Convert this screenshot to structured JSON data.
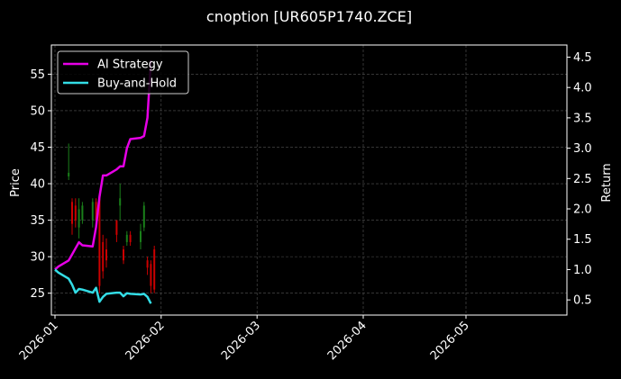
{
  "chart_data": {
    "type": "candlestick+line",
    "title": "cnoption [UR605P1740.ZCE]",
    "xlabel": "",
    "ylabel_left": "Price",
    "ylabel_right": "Return",
    "x_ticks": [
      "2026-01",
      "2026-02",
      "2026-03",
      "2026-04",
      "2026-05"
    ],
    "x_tick_dates": [
      "2026-01-01",
      "2026-02-01",
      "2026-03-01",
      "2026-04-01",
      "2026-05-01"
    ],
    "x_range": [
      "2026-01-01",
      "2026-05-30"
    ],
    "y_left_ticks": [
      25,
      30,
      35,
      40,
      45,
      50,
      55
    ],
    "y_left_range": [
      22,
      59
    ],
    "y_right_ticks": [
      0.5,
      1.0,
      1.5,
      2.0,
      2.5,
      3.0,
      3.5,
      4.0,
      4.5
    ],
    "y_right_ticks_labels": [
      "0.5",
      "1.0",
      "1.5",
      "2.0",
      "2.5",
      "3.0",
      "3.5",
      "4.0",
      "4.5"
    ],
    "y_right_range": [
      0.25,
      4.7
    ],
    "grid": true,
    "legend_placement": "top-left",
    "colors": {
      "background": "#000000",
      "up_candle": "#1a7f1a",
      "down_candle": "#cc0000",
      "ai_strategy": "#e600e6",
      "buy_and_hold": "#33dde6",
      "grid": "#555555"
    },
    "series": [
      {
        "name": "AI Strategy",
        "axis": "right",
        "x": [
          "2026-01-01",
          "2026-01-02",
          "2026-01-05",
          "2026-01-06",
          "2026-01-07",
          "2026-01-08",
          "2026-01-09",
          "2026-01-12",
          "2026-01-13",
          "2026-01-14",
          "2026-01-15",
          "2026-01-16",
          "2026-01-19",
          "2026-01-20",
          "2026-01-21",
          "2026-01-22",
          "2026-01-23",
          "2026-01-26",
          "2026-01-27",
          "2026-01-28",
          "2026-01-29"
        ],
        "values": [
          1.0,
          1.05,
          1.15,
          1.25,
          1.35,
          1.45,
          1.4,
          1.38,
          1.7,
          2.2,
          2.55,
          2.55,
          2.65,
          2.7,
          2.7,
          3.0,
          3.15,
          3.17,
          3.2,
          3.5,
          4.45
        ]
      },
      {
        "name": "Buy-and-Hold",
        "axis": "right",
        "x": [
          "2026-01-01",
          "2026-01-02",
          "2026-01-05",
          "2026-01-06",
          "2026-01-07",
          "2026-01-08",
          "2026-01-09",
          "2026-01-12",
          "2026-01-13",
          "2026-01-14",
          "2026-01-15",
          "2026-01-16",
          "2026-01-19",
          "2026-01-20",
          "2026-01-21",
          "2026-01-22",
          "2026-01-23",
          "2026-01-26",
          "2026-01-27",
          "2026-01-28",
          "2026-01-29"
        ],
        "values": [
          1.0,
          0.95,
          0.85,
          0.75,
          0.62,
          0.68,
          0.67,
          0.62,
          0.7,
          0.47,
          0.55,
          0.6,
          0.62,
          0.62,
          0.56,
          0.61,
          0.6,
          0.59,
          0.6,
          0.55,
          0.44
        ]
      }
    ],
    "candles": [
      {
        "date": "2026-01-05",
        "open": 41,
        "high": 45.5,
        "low": 40.5,
        "close": 41.5
      },
      {
        "date": "2026-01-06",
        "open": 37.5,
        "high": 38,
        "low": 33,
        "close": 34.5
      },
      {
        "date": "2026-01-07",
        "open": 37,
        "high": 38,
        "low": 34,
        "close": 35
      },
      {
        "date": "2026-01-08",
        "open": 34,
        "high": 38,
        "low": 32.5,
        "close": 36.5
      },
      {
        "date": "2026-01-09",
        "open": 35,
        "high": 37.5,
        "low": 34.5,
        "close": 37
      },
      {
        "date": "2026-01-12",
        "open": 35,
        "high": 38,
        "low": 34,
        "close": 37.5
      },
      {
        "date": "2026-01-13",
        "open": 37.5,
        "high": 38,
        "low": 34,
        "close": 35
      },
      {
        "date": "2026-01-14",
        "open": 38,
        "high": 38.5,
        "low": 25,
        "close": 26
      },
      {
        "date": "2026-01-15",
        "open": 32,
        "high": 33,
        "low": 27,
        "close": 28
      },
      {
        "date": "2026-01-16",
        "open": 31,
        "high": 32.5,
        "low": 28.5,
        "close": 29.5
      },
      {
        "date": "2026-01-19",
        "open": 35,
        "high": 35,
        "low": 32,
        "close": 33
      },
      {
        "date": "2026-01-20",
        "open": 37,
        "high": 40,
        "low": 35,
        "close": 38
      },
      {
        "date": "2026-01-21",
        "open": 31,
        "high": 31.5,
        "low": 29,
        "close": 29.5
      },
      {
        "date": "2026-01-22",
        "open": 32,
        "high": 33.5,
        "low": 31.5,
        "close": 33
      },
      {
        "date": "2026-01-23",
        "open": 33,
        "high": 33.5,
        "low": 31.5,
        "close": 32
      },
      {
        "date": "2026-01-26",
        "open": 32,
        "high": 34.5,
        "low": 31,
        "close": 33.5
      },
      {
        "date": "2026-01-27",
        "open": 34,
        "high": 37.5,
        "low": 33.5,
        "close": 37
      },
      {
        "date": "2026-01-28",
        "open": 29.5,
        "high": 30,
        "low": 27.5,
        "close": 28.5
      },
      {
        "date": "2026-01-29",
        "open": 29,
        "high": 29.5,
        "low": 25,
        "close": 26
      },
      {
        "date": "2026-01-30",
        "open": 31,
        "high": 31.5,
        "low": 25,
        "close": 25.5
      }
    ]
  }
}
